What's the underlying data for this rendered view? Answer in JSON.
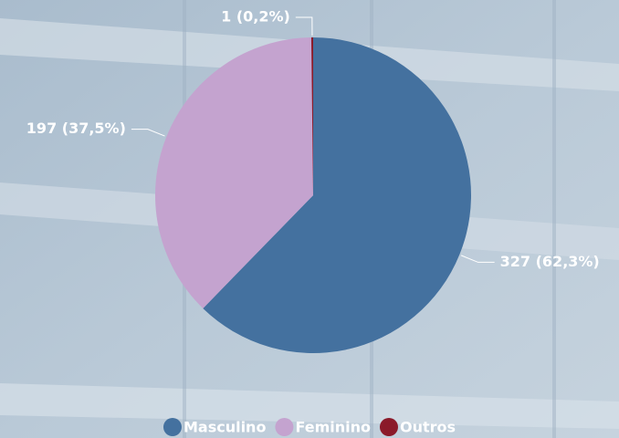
{
  "chart_data": {
    "type": "pie",
    "categories": [
      "Masculino",
      "Feminino",
      "Outros"
    ],
    "values": [
      327,
      197,
      1
    ],
    "value_labels": [
      "327 (62,3%)",
      "197 (37,5%)",
      "1 (0,2%)"
    ],
    "colors": [
      "#44719f",
      "#c4a3cf",
      "#8b1a2a"
    ],
    "legend": "bottom"
  }
}
